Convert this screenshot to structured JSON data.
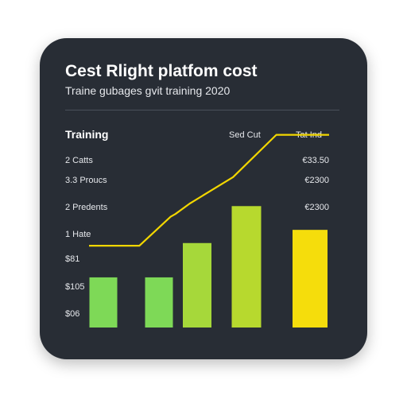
{
  "card": {
    "title": "Cest Rlight platfom cost",
    "subtitle": "Traine gubages gvit training 2020",
    "section_label": "Training"
  },
  "legend": [
    "Sed Cut",
    "Tat Ind"
  ],
  "row_labels": [
    "2 Catts",
    "3.3 Proucs",
    "2 Predents",
    "1 Hate",
    "$81",
    "$105",
    "$06"
  ],
  "value_labels": [
    "€33.50",
    "€2300",
    "€2300"
  ],
  "colors": {
    "background": "#282d35",
    "line": "#f2d600",
    "bar_1": "#7ed957",
    "bar_2": "#7ed957",
    "bar_3": "#a6d83a",
    "bar_4": "#b7d92e",
    "bar_5": "#f5dd0c"
  },
  "chart_data": {
    "type": "bar",
    "title": "Cest Rlight platfom cost",
    "subtitle": "Traine gubages gvit training 2020",
    "categories": [
      "",
      "",
      "",
      "",
      ""
    ],
    "series": [
      {
        "values": [
          19,
          19,
          32,
          46,
          37
        ]
      }
    ],
    "line": {
      "points": [
        {
          "x": 0.0,
          "y": 31
        },
        {
          "x": 0.21,
          "y": 31
        },
        {
          "x": 0.34,
          "y": 42
        },
        {
          "x": 0.36,
          "y": 43
        },
        {
          "x": 0.42,
          "y": 47
        },
        {
          "x": 0.6,
          "y": 57
        },
        {
          "x": 0.78,
          "y": 73
        },
        {
          "x": 1.0,
          "y": 73
        }
      ]
    },
    "ylim": [
      0,
      75
    ],
    "legend_position": "top-right",
    "grid": false
  }
}
